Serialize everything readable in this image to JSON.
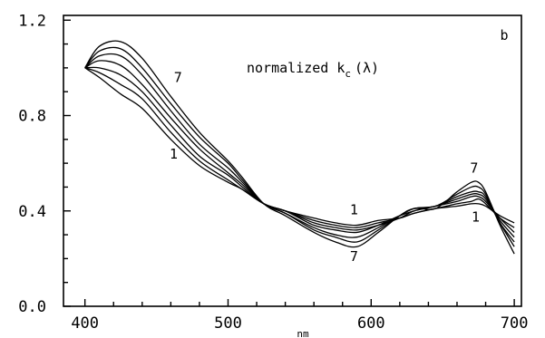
{
  "chart_data": {
    "type": "line",
    "title": "",
    "panel_label": "b",
    "annotation": "normalized k",
    "annotation_subscript": "c",
    "annotation_suffix": "(λ)",
    "xlabel": "nm",
    "ylabel": "",
    "xlim": [
      385,
      705
    ],
    "ylim": [
      0.0,
      1.22
    ],
    "xticks": [
      400,
      500,
      600,
      700
    ],
    "xtick_labels": [
      "400",
      "500",
      "600",
      "700"
    ],
    "yticks": [
      0.0,
      0.4,
      0.8,
      1.2
    ],
    "ytick_labels": [
      "0.0",
      "0.4",
      "0.8",
      "1.2"
    ],
    "grid": false,
    "x": [
      400,
      410,
      425,
      440,
      460,
      480,
      500,
      510,
      525,
      540,
      560,
      575,
      590,
      605,
      620,
      630,
      645,
      660,
      670,
      675,
      680,
      690,
      700
    ],
    "series": [
      {
        "values": [
          1.0,
          0.96,
          0.89,
          0.83,
          0.7,
          0.59,
          0.52,
          0.49,
          0.43,
          0.4,
          0.37,
          0.35,
          0.34,
          0.36,
          0.37,
          0.39,
          0.41,
          0.42,
          0.43,
          0.43,
          0.42,
          0.38,
          0.35
        ]
      },
      {
        "values": [
          1.0,
          0.98,
          0.93,
          0.87,
          0.73,
          0.61,
          0.53,
          0.49,
          0.43,
          0.4,
          0.36,
          0.34,
          0.33,
          0.35,
          0.37,
          0.39,
          0.41,
          0.43,
          0.44,
          0.45,
          0.43,
          0.37,
          0.33
        ]
      },
      {
        "values": [
          1.0,
          1.0,
          0.97,
          0.9,
          0.76,
          0.63,
          0.55,
          0.5,
          0.43,
          0.4,
          0.35,
          0.33,
          0.32,
          0.34,
          0.37,
          0.4,
          0.42,
          0.44,
          0.46,
          0.46,
          0.44,
          0.37,
          0.31
        ]
      },
      {
        "values": [
          1.0,
          1.03,
          1.01,
          0.93,
          0.79,
          0.66,
          0.56,
          0.51,
          0.43,
          0.4,
          0.34,
          0.32,
          0.31,
          0.34,
          0.38,
          0.4,
          0.42,
          0.45,
          0.47,
          0.47,
          0.45,
          0.36,
          0.29
        ]
      },
      {
        "values": [
          1.0,
          1.05,
          1.05,
          0.97,
          0.82,
          0.68,
          0.58,
          0.52,
          0.43,
          0.39,
          0.33,
          0.3,
          0.29,
          0.33,
          0.38,
          0.41,
          0.42,
          0.46,
          0.48,
          0.48,
          0.46,
          0.35,
          0.27
        ]
      },
      {
        "values": [
          1.0,
          1.07,
          1.08,
          1.0,
          0.85,
          0.71,
          0.6,
          0.53,
          0.43,
          0.39,
          0.32,
          0.29,
          0.27,
          0.32,
          0.38,
          0.41,
          0.42,
          0.47,
          0.5,
          0.5,
          0.47,
          0.35,
          0.25
        ]
      },
      {
        "values": [
          1.0,
          1.09,
          1.11,
          1.04,
          0.88,
          0.73,
          0.61,
          0.54,
          0.43,
          0.38,
          0.31,
          0.27,
          0.25,
          0.31,
          0.38,
          0.41,
          0.41,
          0.48,
          0.52,
          0.52,
          0.48,
          0.34,
          0.22
        ]
      }
    ],
    "curve_labels": [
      {
        "text": "7",
        "x": 465,
        "y": 0.94
      },
      {
        "text": "1",
        "x": 462,
        "y": 0.62
      },
      {
        "text": "1",
        "x": 588,
        "y": 0.385
      },
      {
        "text": "7",
        "x": 588,
        "y": 0.19
      },
      {
        "text": "7",
        "x": 672,
        "y": 0.56
      },
      {
        "text": "1",
        "x": 673,
        "y": 0.355
      }
    ]
  }
}
